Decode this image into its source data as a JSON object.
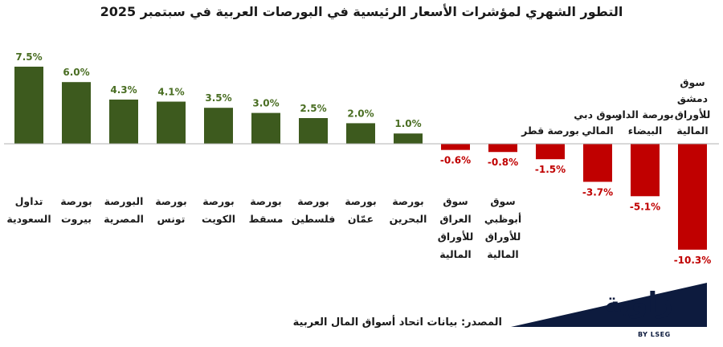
{
  "chart_data": {
    "type": "bar",
    "title": "التطور الشهري لمؤشرات الأسعار الرئيسية في البورصات العربية في سبتمبر 2025",
    "categories": [
      "تداول السعودية",
      "بورصة بيروت",
      "البورصة المصرية",
      "بورصة تونس",
      "بورصة الكويت",
      "بورصة مسقط",
      "بورصة فلسطين",
      "بورصة عمّان",
      "بورصة البحرين",
      "سوق العراق للأوراق المالية",
      "سوق أبوظبي للأوراق المالية",
      "بورصة قطر",
      "سوق دبي المالي",
      "بورصة الدار البيضاء",
      "سوق دمشق للأوراق المالية"
    ],
    "values": [
      7.5,
      6.0,
      4.3,
      4.1,
      3.5,
      3.0,
      2.5,
      2.0,
      1.0,
      -0.6,
      -0.8,
      -1.5,
      -3.7,
      -5.1,
      -10.3
    ],
    "value_labels": [
      "7.5%",
      "6.0%",
      "4.3%",
      "4.1%",
      "3.5%",
      "3.0%",
      "2.5%",
      "2.0%",
      "1.0%",
      "-0.6%",
      "-0.8%",
      "-1.5%",
      "-3.7%",
      "-5.1%",
      "-10.3%"
    ],
    "xlabel": "",
    "ylabel": "",
    "grid": false,
    "colors": {
      "positive": "#3d5a1e",
      "negative": "#c00000",
      "positive_label": "#4a6e23",
      "negative_label": "#c00000"
    }
  },
  "footer": {
    "source": "المصدر: بيانات اتحاد أسواق المال العربية",
    "logo": "زاوية",
    "logo_sub": "BY LSEG"
  }
}
